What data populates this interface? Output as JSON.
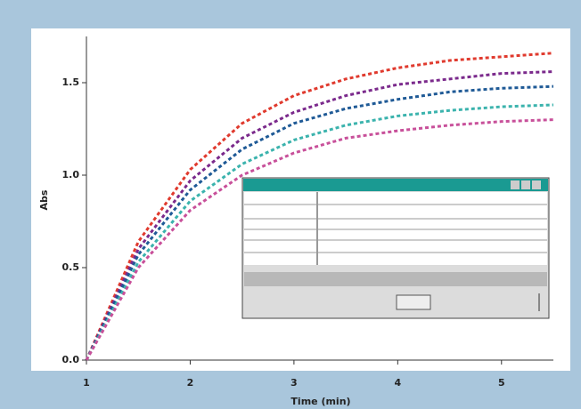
{
  "chart_data": {
    "type": "line",
    "x_label": "Time (min)",
    "y_label": "Abs",
    "x": [
      1,
      1.5,
      2,
      2.5,
      3,
      3.5,
      4,
      4.5,
      5,
      5.5
    ],
    "series": [
      {
        "color": "#e03a2e",
        "values": [
          0,
          0.64,
          1.03,
          1.28,
          1.43,
          1.52,
          1.58,
          1.62,
          1.64,
          1.66
        ]
      },
      {
        "color": "#7b2a8c",
        "values": [
          0,
          0.6,
          0.97,
          1.2,
          1.34,
          1.43,
          1.49,
          1.52,
          1.55,
          1.56
        ]
      },
      {
        "color": "#1f5a96",
        "values": [
          0,
          0.57,
          0.92,
          1.14,
          1.28,
          1.36,
          1.41,
          1.45,
          1.47,
          1.48
        ]
      },
      {
        "color": "#3bb3ad",
        "values": [
          0,
          0.53,
          0.86,
          1.06,
          1.19,
          1.27,
          1.32,
          1.35,
          1.37,
          1.38
        ]
      },
      {
        "color": "#c8509a",
        "values": [
          0,
          0.5,
          0.81,
          1.0,
          1.12,
          1.2,
          1.24,
          1.27,
          1.29,
          1.3
        ]
      }
    ],
    "xlim": [
      1,
      5.5
    ],
    "xticks": [
      1,
      2,
      3,
      4,
      5
    ],
    "ylim": [
      0,
      1.75
    ],
    "yticks": [
      {
        "value": 0,
        "label": "0.0"
      },
      0.5,
      {
        "value": 1,
        "label": "1.0"
      },
      1.5
    ]
  }
}
